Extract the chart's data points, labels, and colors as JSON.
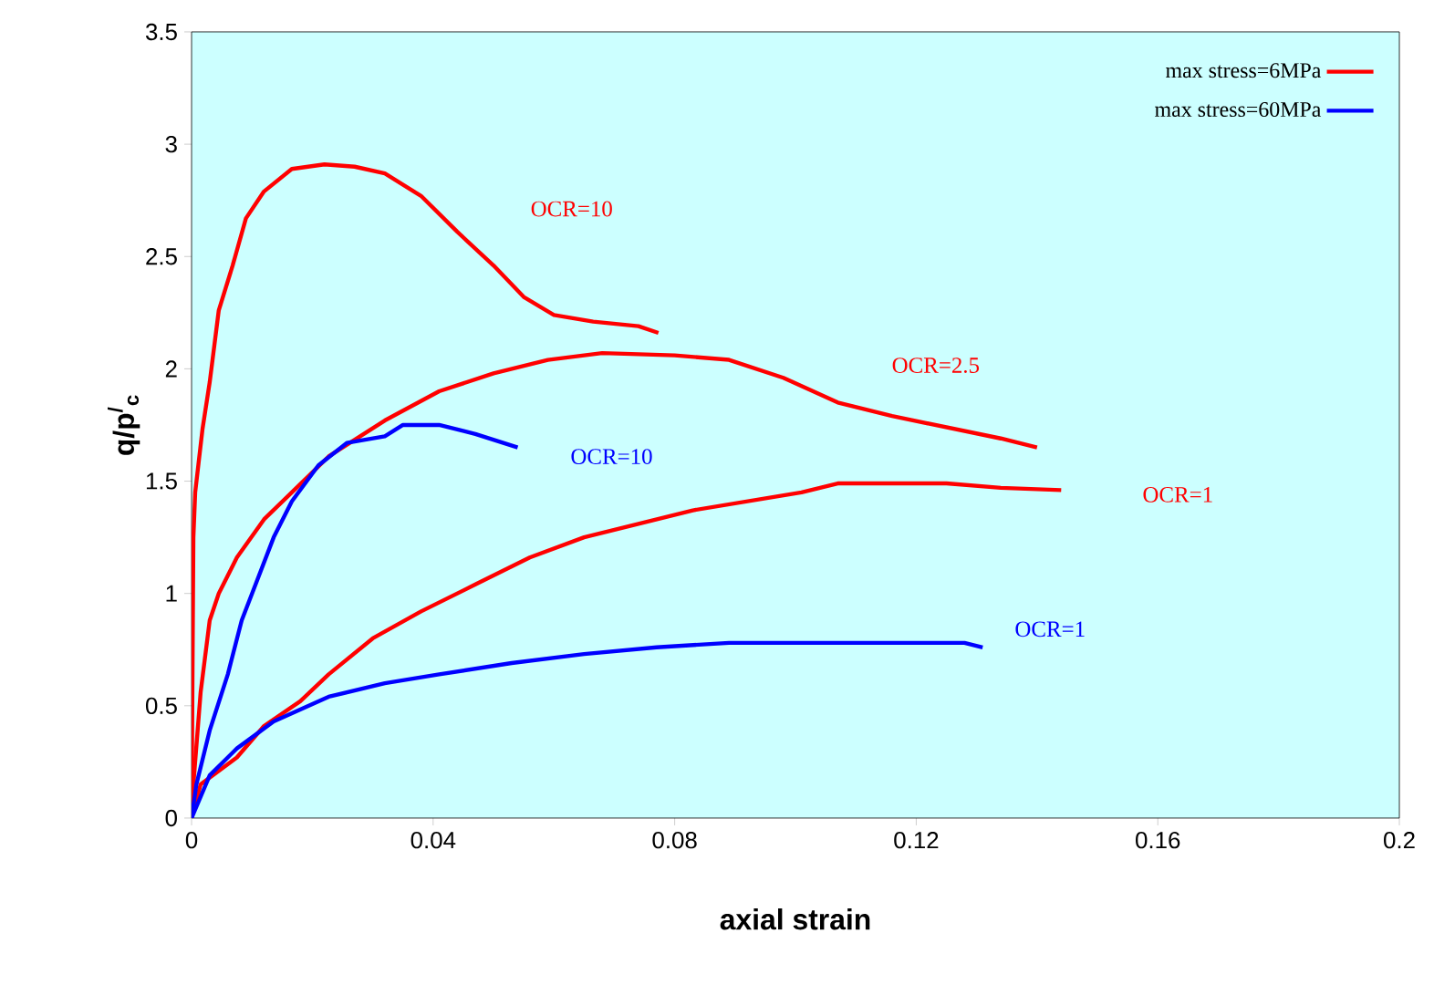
{
  "chart_data": {
    "type": "line",
    "xlabel": "axial strain",
    "ylabel": "q/p$^{/}$$_{c}$",
    "xlim": [
      0,
      0.2
    ],
    "ylim": [
      0,
      3.5
    ],
    "xticks": [
      0,
      0.04,
      0.08,
      0.12,
      0.16,
      0.2
    ],
    "yticks": [
      0,
      0.5,
      1,
      1.5,
      2,
      2.5,
      3,
      3.5
    ],
    "grid": false,
    "legend": "top right",
    "marker": "none",
    "line_style": "solid",
    "series": [
      {
        "name": "max stress=6MPa",
        "color": "#ff0000",
        "x": [
          0,
          0.0003,
          0.0006,
          0.0018,
          0.003,
          0.0045,
          0.0068,
          0.009,
          0.012,
          0.0166,
          0.022,
          0.027,
          0.032,
          0.038,
          0.044,
          0.05,
          0.055,
          0.06,
          0.0665,
          0.074,
          0.0773
        ],
        "values": [
          0,
          1.25,
          1.45,
          1.73,
          1.94,
          2.26,
          2.46,
          2.67,
          2.79,
          2.89,
          2.91,
          2.9,
          2.87,
          2.77,
          2.61,
          2.46,
          2.32,
          2.24,
          2.21,
          2.19,
          2.16
        ]
      },
      {
        "color": "#ff0000",
        "x": [
          0,
          0.0003,
          0.0015,
          0.003,
          0.0045,
          0.0075,
          0.012,
          0.0166,
          0.0227,
          0.032,
          0.041,
          0.05,
          0.059,
          0.068,
          0.08,
          0.089,
          0.098,
          0.107,
          0.116,
          0.125,
          0.134,
          0.14
        ],
        "values": [
          0,
          0.15,
          0.56,
          0.88,
          1.0,
          1.16,
          1.33,
          1.45,
          1.61,
          1.77,
          1.9,
          1.98,
          2.04,
          2.07,
          2.06,
          2.04,
          1.96,
          1.85,
          1.79,
          1.74,
          1.69,
          1.65
        ]
      },
      {
        "color": "#ff0000",
        "x": [
          0,
          0.0015,
          0.0075,
          0.012,
          0.018,
          0.0227,
          0.03,
          0.038,
          0.047,
          0.056,
          0.065,
          0.074,
          0.083,
          0.092,
          0.101,
          0.107,
          0.116,
          0.125,
          0.134,
          0.144
        ],
        "values": [
          0,
          0.15,
          0.27,
          0.41,
          0.52,
          0.64,
          0.8,
          0.92,
          1.04,
          1.16,
          1.25,
          1.31,
          1.37,
          1.41,
          1.45,
          1.49,
          1.49,
          1.49,
          1.47,
          1.46
        ]
      },
      {
        "name": "max stress=60MPa",
        "color": "#0000ff",
        "x": [
          0,
          0.0008,
          0.003,
          0.006,
          0.0083,
          0.0106,
          0.0136,
          0.0166,
          0.021,
          0.0257,
          0.032,
          0.035,
          0.041,
          0.047,
          0.054
        ],
        "values": [
          0,
          0.15,
          0.39,
          0.64,
          0.88,
          1.04,
          1.25,
          1.41,
          1.57,
          1.67,
          1.7,
          1.75,
          1.75,
          1.71,
          1.65
        ]
      },
      {
        "color": "#0000ff",
        "x": [
          0,
          0.003,
          0.0075,
          0.0136,
          0.0227,
          0.032,
          0.041,
          0.053,
          0.065,
          0.077,
          0.089,
          0.104,
          0.119,
          0.128,
          0.131
        ],
        "values": [
          0,
          0.19,
          0.31,
          0.43,
          0.54,
          0.6,
          0.64,
          0.69,
          0.73,
          0.76,
          0.78,
          0.78,
          0.78,
          0.78,
          0.76
        ]
      }
    ],
    "annotations": [
      "OCR=10",
      "OCR=2.5",
      "OCR=1",
      "OCR=10",
      "OCR=1"
    ]
  }
}
